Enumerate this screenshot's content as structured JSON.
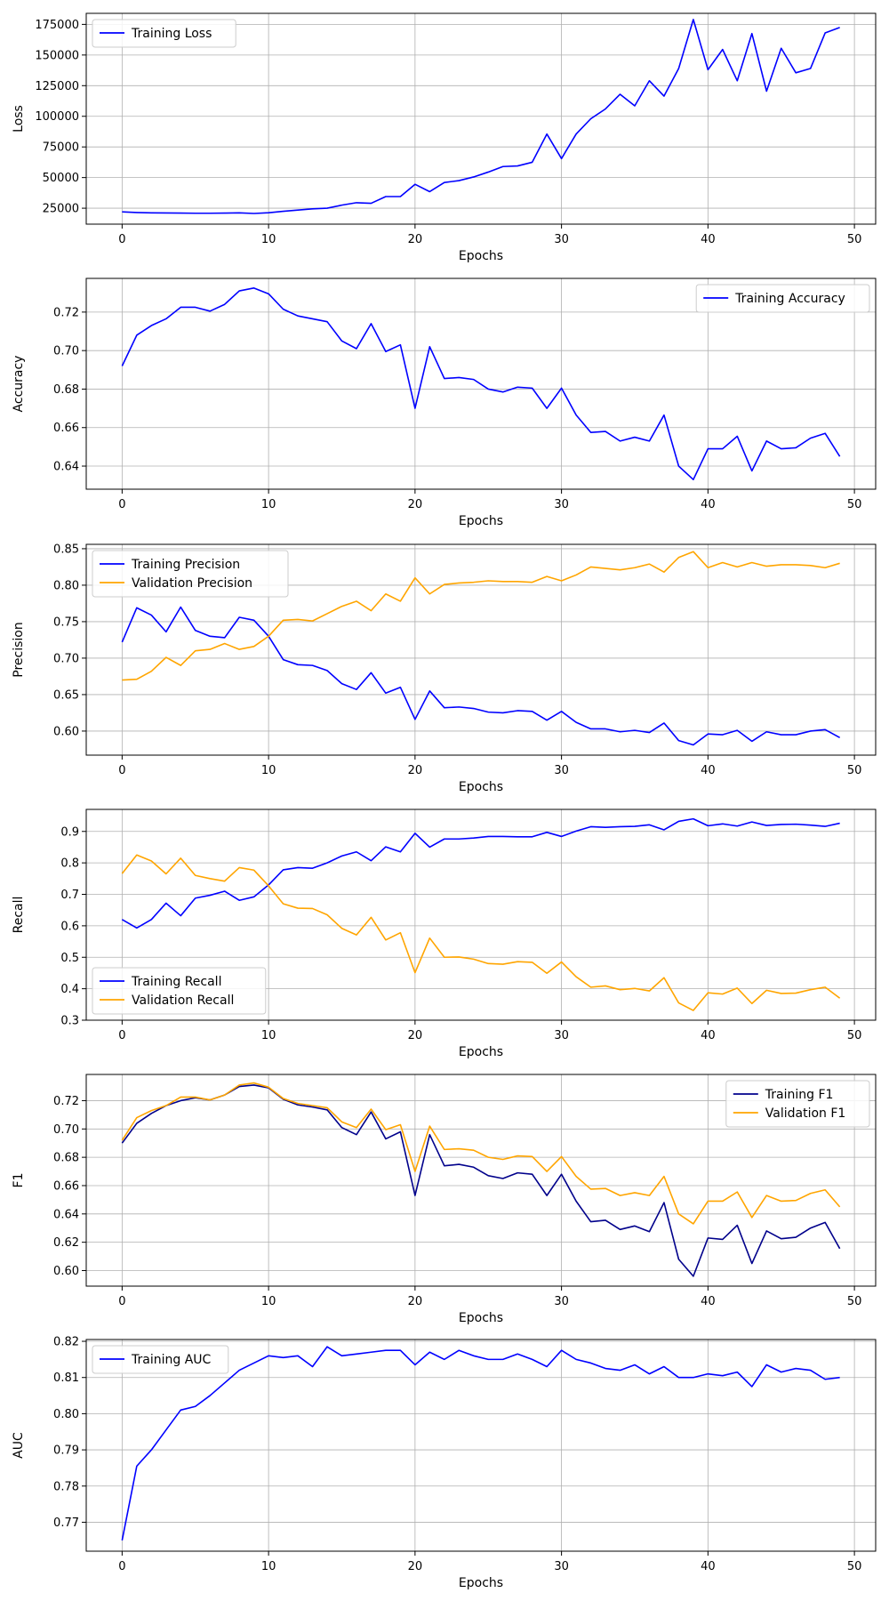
{
  "chart_data": [
    {
      "type": "line",
      "xlabel": "Epochs",
      "ylabel": "Loss",
      "xlim": [
        -2.45,
        51.45
      ],
      "ylim": [
        12000,
        184000
      ],
      "xticks": [
        0,
        10,
        20,
        30,
        40,
        50
      ],
      "yticks": [
        25000,
        50000,
        75000,
        100000,
        125000,
        150000,
        175000
      ],
      "ydecimals": 0,
      "grid": true,
      "legend_position": "upper-left",
      "series": [
        {
          "name": "Training Loss",
          "color": "#0000ff",
          "values": [
            22000,
            21500,
            21200,
            21100,
            21000,
            20900,
            20900,
            21000,
            21200,
            20700,
            21300,
            22500,
            23500,
            24500,
            25000,
            27500,
            29500,
            29000,
            34500,
            34500,
            44500,
            38500,
            46000,
            47500,
            50500,
            54500,
            59000,
            59500,
            62500,
            85500,
            65500,
            85500,
            98000,
            106000,
            118000,
            108500,
            129000,
            116500,
            139000,
            179000,
            138000,
            154500,
            129000,
            167500,
            120500,
            155500,
            135500,
            139000,
            168000,
            172500
          ]
        }
      ]
    },
    {
      "type": "line",
      "xlabel": "Epochs",
      "ylabel": "Accuracy",
      "xlim": [
        -2.45,
        51.45
      ],
      "ylim": [
        0.628,
        0.7375
      ],
      "xticks": [
        0,
        10,
        20,
        30,
        40,
        50
      ],
      "yticks": [
        0.64,
        0.66,
        0.68,
        0.7,
        0.72
      ],
      "ydecimals": 2,
      "grid": true,
      "legend_position": "upper-right",
      "series": [
        {
          "name": "Training Accuracy",
          "color": "#0000ff",
          "values": [
            0.692,
            0.708,
            0.713,
            0.7165,
            0.7225,
            0.7225,
            0.7205,
            0.724,
            0.731,
            0.7325,
            0.7295,
            0.7215,
            0.718,
            0.7165,
            0.715,
            0.705,
            0.701,
            0.714,
            0.6995,
            0.703,
            0.67,
            0.702,
            0.6855,
            0.686,
            0.685,
            0.68,
            0.6785,
            0.681,
            0.6805,
            0.67,
            0.6805,
            0.6665,
            0.6575,
            0.658,
            0.653,
            0.655,
            0.653,
            0.6665,
            0.64,
            0.633,
            0.649,
            0.649,
            0.6555,
            0.6375,
            0.653,
            0.649,
            0.6495,
            0.6545,
            0.657,
            0.645
          ]
        }
      ]
    },
    {
      "type": "line",
      "xlabel": "Epochs",
      "ylabel": "Precision",
      "xlim": [
        -2.45,
        51.45
      ],
      "ylim": [
        0.567,
        0.856
      ],
      "xticks": [
        0,
        10,
        20,
        30,
        40,
        50
      ],
      "yticks": [
        0.6,
        0.65,
        0.7,
        0.75,
        0.8,
        0.85
      ],
      "ydecimals": 2,
      "grid": true,
      "legend_position": "upper-left",
      "series": [
        {
          "name": "Training Precision",
          "color": "#0000ff",
          "values": [
            0.722,
            0.769,
            0.759,
            0.736,
            0.77,
            0.738,
            0.73,
            0.728,
            0.756,
            0.752,
            0.73,
            0.698,
            0.691,
            0.69,
            0.683,
            0.665,
            0.657,
            0.68,
            0.652,
            0.66,
            0.616,
            0.655,
            0.632,
            0.633,
            0.631,
            0.626,
            0.625,
            0.628,
            0.627,
            0.615,
            0.627,
            0.612,
            0.603,
            0.603,
            0.599,
            0.601,
            0.598,
            0.611,
            0.587,
            0.581,
            0.596,
            0.595,
            0.601,
            0.586,
            0.599,
            0.595,
            0.595,
            0.6,
            0.602,
            0.591
          ]
        },
        {
          "name": "Validation Precision",
          "color": "#ffa500",
          "values": [
            0.67,
            0.671,
            0.682,
            0.701,
            0.69,
            0.71,
            0.712,
            0.72,
            0.712,
            0.716,
            0.73,
            0.752,
            0.753,
            0.751,
            0.761,
            0.771,
            0.778,
            0.765,
            0.788,
            0.778,
            0.81,
            0.788,
            0.801,
            0.803,
            0.804,
            0.806,
            0.805,
            0.805,
            0.804,
            0.812,
            0.806,
            0.814,
            0.825,
            0.823,
            0.821,
            0.824,
            0.829,
            0.818,
            0.838,
            0.846,
            0.824,
            0.831,
            0.825,
            0.831,
            0.826,
            0.828,
            0.828,
            0.827,
            0.824,
            0.83
          ]
        }
      ]
    },
    {
      "type": "line",
      "xlabel": "Epochs",
      "ylabel": "Recall",
      "xlim": [
        -2.45,
        51.45
      ],
      "ylim": [
        0.3,
        0.97
      ],
      "xticks": [
        0,
        10,
        20,
        30,
        40,
        50
      ],
      "yticks": [
        0.3,
        0.4,
        0.5,
        0.6,
        0.7,
        0.8,
        0.9
      ],
      "ydecimals": 1,
      "grid": true,
      "legend_position": "lower-left",
      "series": [
        {
          "name": "Training Recall",
          "color": "#0000ff",
          "values": [
            0.62,
            0.593,
            0.62,
            0.672,
            0.632,
            0.688,
            0.697,
            0.71,
            0.681,
            0.692,
            0.73,
            0.778,
            0.785,
            0.783,
            0.8,
            0.822,
            0.835,
            0.807,
            0.851,
            0.835,
            0.894,
            0.85,
            0.876,
            0.876,
            0.879,
            0.884,
            0.884,
            0.883,
            0.883,
            0.897,
            0.884,
            0.901,
            0.915,
            0.913,
            0.915,
            0.916,
            0.921,
            0.905,
            0.932,
            0.94,
            0.918,
            0.924,
            0.917,
            0.93,
            0.919,
            0.922,
            0.923,
            0.92,
            0.916,
            0.926
          ]
        },
        {
          "name": "Validation Recall",
          "color": "#ffa500",
          "values": [
            0.766,
            0.825,
            0.806,
            0.765,
            0.815,
            0.76,
            0.75,
            0.742,
            0.785,
            0.777,
            0.727,
            0.67,
            0.656,
            0.655,
            0.635,
            0.592,
            0.571,
            0.627,
            0.555,
            0.578,
            0.451,
            0.561,
            0.5,
            0.501,
            0.494,
            0.48,
            0.478,
            0.486,
            0.484,
            0.449,
            0.485,
            0.438,
            0.405,
            0.409,
            0.397,
            0.401,
            0.393,
            0.435,
            0.355,
            0.331,
            0.387,
            0.383,
            0.402,
            0.353,
            0.395,
            0.385,
            0.386,
            0.397,
            0.405,
            0.37
          ]
        }
      ]
    },
    {
      "type": "line",
      "xlabel": "Epochs",
      "ylabel": "F1",
      "xlim": [
        -2.45,
        51.45
      ],
      "ylim": [
        0.589,
        0.7385
      ],
      "xticks": [
        0,
        10,
        20,
        30,
        40,
        50
      ],
      "yticks": [
        0.6,
        0.62,
        0.64,
        0.66,
        0.68,
        0.7,
        0.72
      ],
      "ydecimals": 2,
      "grid": true,
      "legend_position": "upper-right",
      "series": [
        {
          "name": "Training F1",
          "color": "#00008b",
          "values": [
            0.69,
            0.704,
            0.711,
            0.7165,
            0.72,
            0.722,
            0.7205,
            0.724,
            0.73,
            0.731,
            0.729,
            0.721,
            0.717,
            0.7155,
            0.7135,
            0.701,
            0.696,
            0.712,
            0.693,
            0.698,
            0.653,
            0.696,
            0.674,
            0.675,
            0.673,
            0.667,
            0.665,
            0.669,
            0.668,
            0.653,
            0.668,
            0.649,
            0.6345,
            0.6355,
            0.629,
            0.6315,
            0.6275,
            0.648,
            0.608,
            0.596,
            0.623,
            0.622,
            0.632,
            0.605,
            0.628,
            0.6225,
            0.6235,
            0.63,
            0.634,
            0.6155
          ]
        },
        {
          "name": "Validation F1",
          "color": "#ffa500",
          "values": [
            0.692,
            0.708,
            0.713,
            0.7165,
            0.7225,
            0.7225,
            0.7205,
            0.724,
            0.731,
            0.7325,
            0.7295,
            0.7215,
            0.718,
            0.7165,
            0.715,
            0.705,
            0.701,
            0.714,
            0.6995,
            0.703,
            0.67,
            0.702,
            0.6855,
            0.686,
            0.685,
            0.68,
            0.6785,
            0.681,
            0.6805,
            0.67,
            0.6805,
            0.6665,
            0.6575,
            0.658,
            0.653,
            0.655,
            0.653,
            0.6665,
            0.64,
            0.633,
            0.649,
            0.649,
            0.6555,
            0.6375,
            0.653,
            0.649,
            0.6495,
            0.6545,
            0.657,
            0.645
          ]
        }
      ]
    },
    {
      "type": "line",
      "xlabel": "Epochs",
      "ylabel": "AUC",
      "xlim": [
        -2.45,
        51.45
      ],
      "ylim": [
        0.762,
        0.8205
      ],
      "xticks": [
        0,
        10,
        20,
        30,
        40,
        50
      ],
      "yticks": [
        0.77,
        0.78,
        0.79,
        0.8,
        0.81,
        0.82
      ],
      "ydecimals": 2,
      "grid": true,
      "legend_position": "upper-left",
      "series": [
        {
          "name": "Training AUC",
          "color": "#0000ff",
          "values": [
            0.765,
            0.7855,
            0.79,
            0.7955,
            0.801,
            0.802,
            0.805,
            0.8085,
            0.812,
            0.814,
            0.816,
            0.8155,
            0.816,
            0.813,
            0.8185,
            0.816,
            0.8165,
            0.817,
            0.8175,
            0.8175,
            0.8135,
            0.817,
            0.815,
            0.8175,
            0.816,
            0.815,
            0.815,
            0.8165,
            0.815,
            0.813,
            0.8175,
            0.815,
            0.814,
            0.8125,
            0.812,
            0.8135,
            0.811,
            0.813,
            0.81,
            0.81,
            0.811,
            0.8105,
            0.8115,
            0.8075,
            0.8135,
            0.8115,
            0.8125,
            0.812,
            0.8095,
            0.81
          ]
        }
      ]
    }
  ]
}
